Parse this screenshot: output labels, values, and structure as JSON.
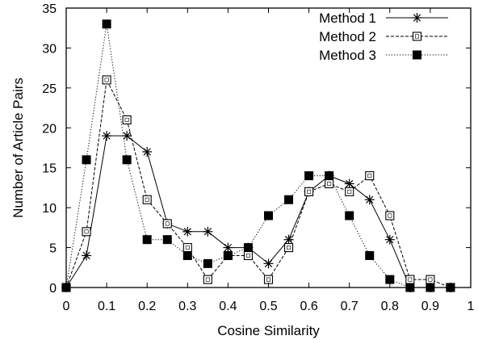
{
  "chart_data": {
    "type": "line",
    "xlabel": "Cosine Similarity",
    "ylabel": "Number of Article Pairs",
    "xlim": [
      0,
      1
    ],
    "ylim": [
      0,
      35
    ],
    "xticks": [
      "0",
      "0.1",
      "0.2",
      "0.3",
      "0.4",
      "0.5",
      "0.6",
      "0.7",
      "0.8",
      "0.9",
      "1"
    ],
    "yticks": [
      "0",
      "5",
      "10",
      "15",
      "20",
      "25",
      "30",
      "35"
    ],
    "legend_position": "top-right",
    "grid": false,
    "x": [
      0,
      0.05,
      0.1,
      0.15,
      0.2,
      0.25,
      0.3,
      0.35,
      0.4,
      0.45,
      0.5,
      0.55,
      0.6,
      0.65,
      0.7,
      0.75,
      0.8,
      0.85,
      0.9,
      0.95
    ],
    "series": [
      {
        "name": "Method 1",
        "marker": "asterisk",
        "line_style": "solid",
        "values": [
          0,
          4,
          19,
          19,
          17,
          8,
          7,
          7,
          5,
          5,
          3,
          6,
          12,
          14,
          13,
          11,
          6,
          0,
          0,
          0
        ]
      },
      {
        "name": "Method 2",
        "marker": "open-square",
        "line_style": "dashed",
        "values": [
          0,
          7,
          26,
          21,
          11,
          8,
          5,
          1,
          4,
          4,
          1,
          5,
          12,
          13,
          12,
          14,
          9,
          1,
          1,
          0
        ]
      },
      {
        "name": "Method 3",
        "marker": "filled-square",
        "line_style": "dotted",
        "values": [
          0,
          16,
          33,
          16,
          6,
          6,
          4,
          3,
          4,
          5,
          9,
          11,
          14,
          14,
          9,
          4,
          1,
          0,
          0,
          0
        ]
      }
    ],
    "line_color": "#000000"
  }
}
